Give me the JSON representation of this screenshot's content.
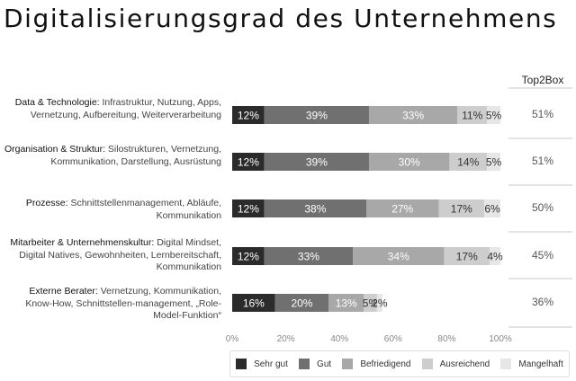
{
  "title": "Digitalisierungsgrad des Unternehmens",
  "top2box_header": "Top2Box",
  "colors": {
    "sehr_gut": "#2b2b2b",
    "gut": "#707070",
    "befriedigend": "#a8a8a8",
    "ausreichend": "#cdcdcd",
    "mangelhaft": "#e6e6e6",
    "divider": "#c9c9c9"
  },
  "categories": [
    {
      "head": "Data & Technologie:",
      "rest": "Infrastruktur, Nutzung, Apps, Vernetzung, Aufbereitung, Weiterverarbeitung",
      "top2box": "51%"
    },
    {
      "head": "Organisation & Struktur:",
      "rest": "Silostrukturen, Vernetzung, Kommunikation, Darstellung, Ausrüstung",
      "top2box": "51%"
    },
    {
      "head": "Prozesse:",
      "rest": "Schnittstellenmanagement, Abläufe, Kommunikation",
      "top2box": "50%"
    },
    {
      "head": "Mitarbeiter & Unternehmenskultur:",
      "rest": "Digital Mindset, Digital Natives, Gewohnheiten, Lernbereitschaft, Kommunikation",
      "top2box": "45%"
    },
    {
      "head": "Externe Berater:",
      "rest": "Vernetzung, Kommunikation, Know-How, Schnittstellen-management, „Role-Model-Funktion“",
      "top2box": "36%"
    }
  ],
  "chart_data": {
    "type": "bar",
    "orientation": "horizontal",
    "stacked": true,
    "title": "Digitalisierungsgrad des Unternehmens",
    "categories": [
      "Data & Technologie",
      "Organisation & Struktur",
      "Prozesse",
      "Mitarbeiter & Unternehmenskultur",
      "Externe Berater"
    ],
    "series": [
      {
        "name": "Sehr gut",
        "values": [
          12,
          12,
          12,
          12,
          16
        ]
      },
      {
        "name": "Gut",
        "values": [
          39,
          39,
          38,
          33,
          20
        ]
      },
      {
        "name": "Befriedigend",
        "values": [
          33,
          30,
          27,
          34,
          13
        ]
      },
      {
        "name": "Ausreichend",
        "values": [
          11,
          14,
          17,
          17,
          5
        ]
      },
      {
        "name": "Mangelhaft",
        "values": [
          5,
          5,
          6,
          4,
          2
        ]
      }
    ],
    "xlim": [
      0,
      100
    ],
    "x_ticks": [
      "0%",
      "20%",
      "40%",
      "60%",
      "80%",
      "100%"
    ],
    "legend_position": "bottom",
    "top2box": [
      "51%",
      "51%",
      "50%",
      "45%",
      "36%"
    ]
  }
}
